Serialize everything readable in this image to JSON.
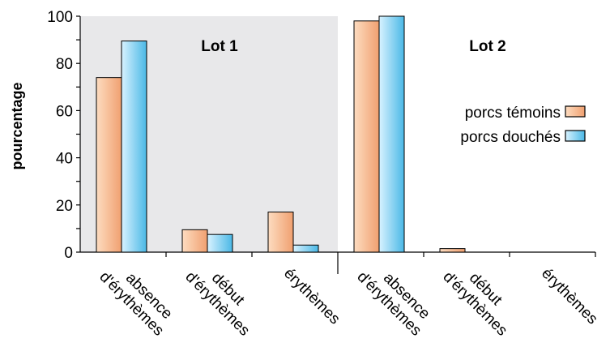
{
  "chart_data": {
    "type": "bar",
    "ylabel": "pourcentage",
    "ylim": [
      0,
      100
    ],
    "yticks": [
      0,
      20,
      40,
      60,
      80,
      100
    ],
    "categories": [
      "absence d'érythèmes",
      "début d'érythèmes",
      "érythèmes"
    ],
    "panels": [
      {
        "title": "Lot 1",
        "shaded": true,
        "values": {
          "porcs témoins": [
            74,
            9.5,
            17
          ],
          "porcs douchés": [
            89.5,
            7.5,
            3
          ]
        }
      },
      {
        "title": "Lot 2",
        "shaded": false,
        "values": {
          "porcs témoins": [
            98,
            1.5,
            0
          ],
          "porcs douchés": [
            100,
            0,
            0
          ]
        }
      }
    ],
    "series": [
      {
        "name": "porcs témoins",
        "gradient": [
          "#fddcc0",
          "#f0a070"
        ]
      },
      {
        "name": "porcs douchés",
        "gradient": [
          "#d8f2ff",
          "#4ab8e6"
        ]
      }
    ],
    "legend_position": "right",
    "panel_shade_color": "#e8e8ea"
  }
}
